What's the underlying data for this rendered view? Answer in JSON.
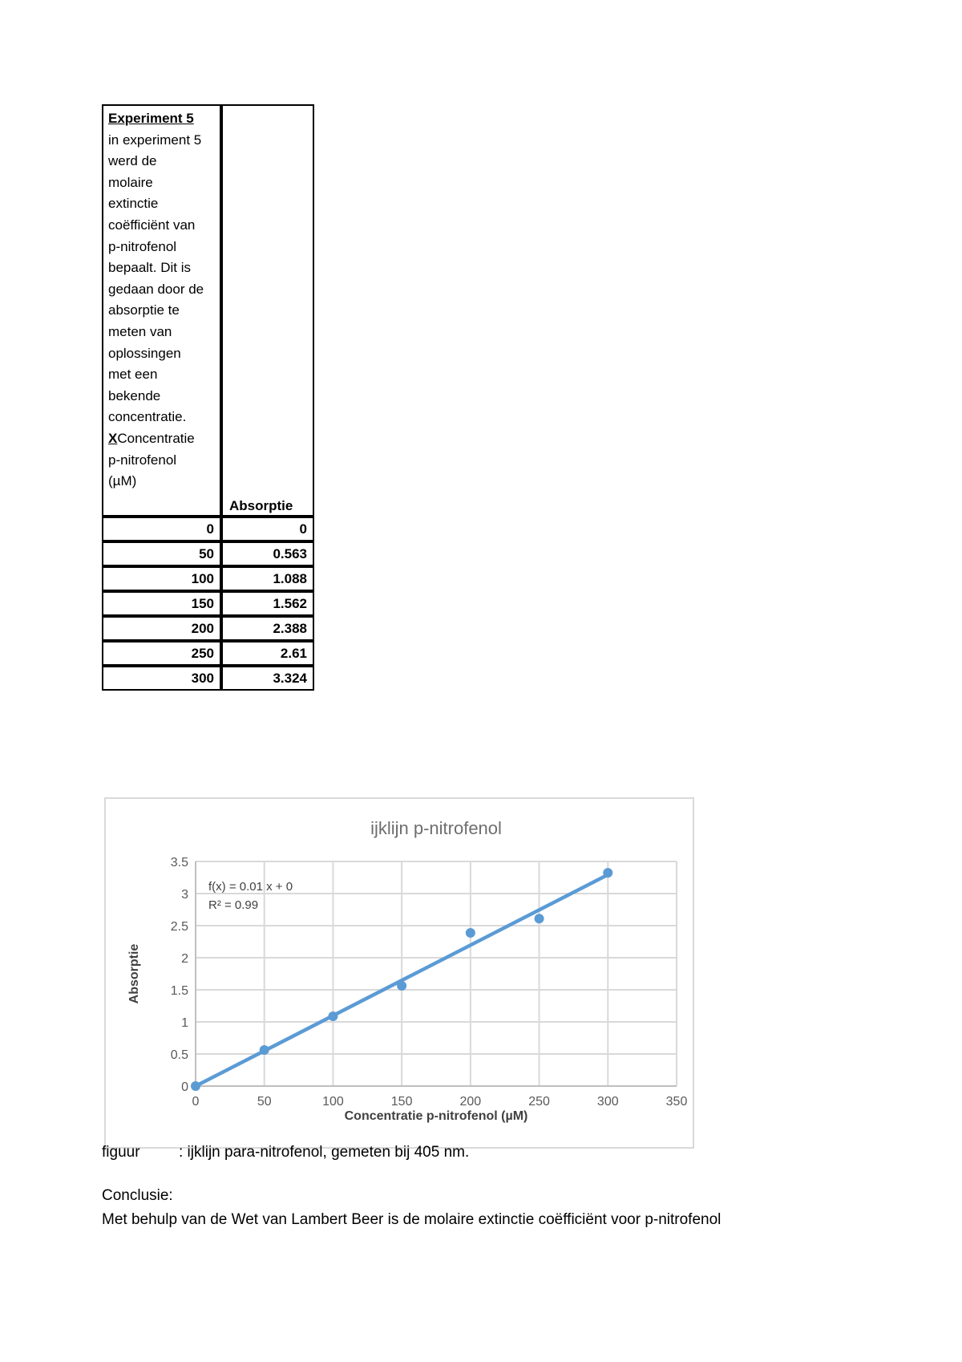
{
  "table": {
    "intro_title": "Experiment 5",
    "intro_text": "in experiment 5\nwerd de\nmolaire\nextinctie\ncoëfficiënt van\np-nitrofenol\nbepaalt. Dit is\ngedaan door de\nabsorptie te\nmeten van\noplossingen\nmet een\nbekende\nconcentratie.",
    "x_prefix": "X",
    "x_rest": "Concentratie\np-nitrofenol\n(µM)",
    "col2_header": "Absorptie",
    "rows": [
      [
        "0",
        "0"
      ],
      [
        "50",
        "0.563"
      ],
      [
        "100",
        "1.088"
      ],
      [
        "150",
        "1.562"
      ],
      [
        "200",
        "2.388"
      ],
      [
        "250",
        "2.61"
      ],
      [
        "300",
        "3.324"
      ]
    ]
  },
  "chart_data": {
    "type": "scatter",
    "title": "ijklijn p-nitrofenol",
    "xlabel": "Concentratie p-nitrofenol (µM)",
    "ylabel": "Absorptie",
    "x": [
      0,
      50,
      100,
      150,
      200,
      250,
      300
    ],
    "y": [
      0,
      0.563,
      1.088,
      1.562,
      2.388,
      2.61,
      3.324
    ],
    "xlim": [
      0,
      350
    ],
    "ylim": [
      0,
      3.5
    ],
    "xticks": [
      0,
      50,
      100,
      150,
      200,
      250,
      300,
      350
    ],
    "yticks": [
      0,
      0.5,
      1,
      1.5,
      2,
      2.5,
      3,
      3.5
    ],
    "grid": true,
    "legend": "none",
    "trendline": {
      "equation_label": "f(x) = 0.01 x + 0",
      "r2_label": "R² = 0.99",
      "slope": 0.01098,
      "intercept": 0,
      "x_start": 0,
      "x_end": 300
    },
    "colors": {
      "series": "#5b9bd5",
      "grid": "#d9d9d9",
      "axis": "#bfbfbf",
      "tick_text": "#595959",
      "title_text": "#6e6e6e",
      "axis_title_text": "#404040",
      "equation_text": "#404040"
    }
  },
  "caption": {
    "label": "figuur",
    "text": ": ijklijn para-nitrofenol, gemeten bij 405 nm."
  },
  "conclusion": {
    "heading": "Conclusie:",
    "body": "Met behulp van de Wet van Lambert Beer is de molaire extinctie coëfficiënt voor p-nitrofenol"
  }
}
